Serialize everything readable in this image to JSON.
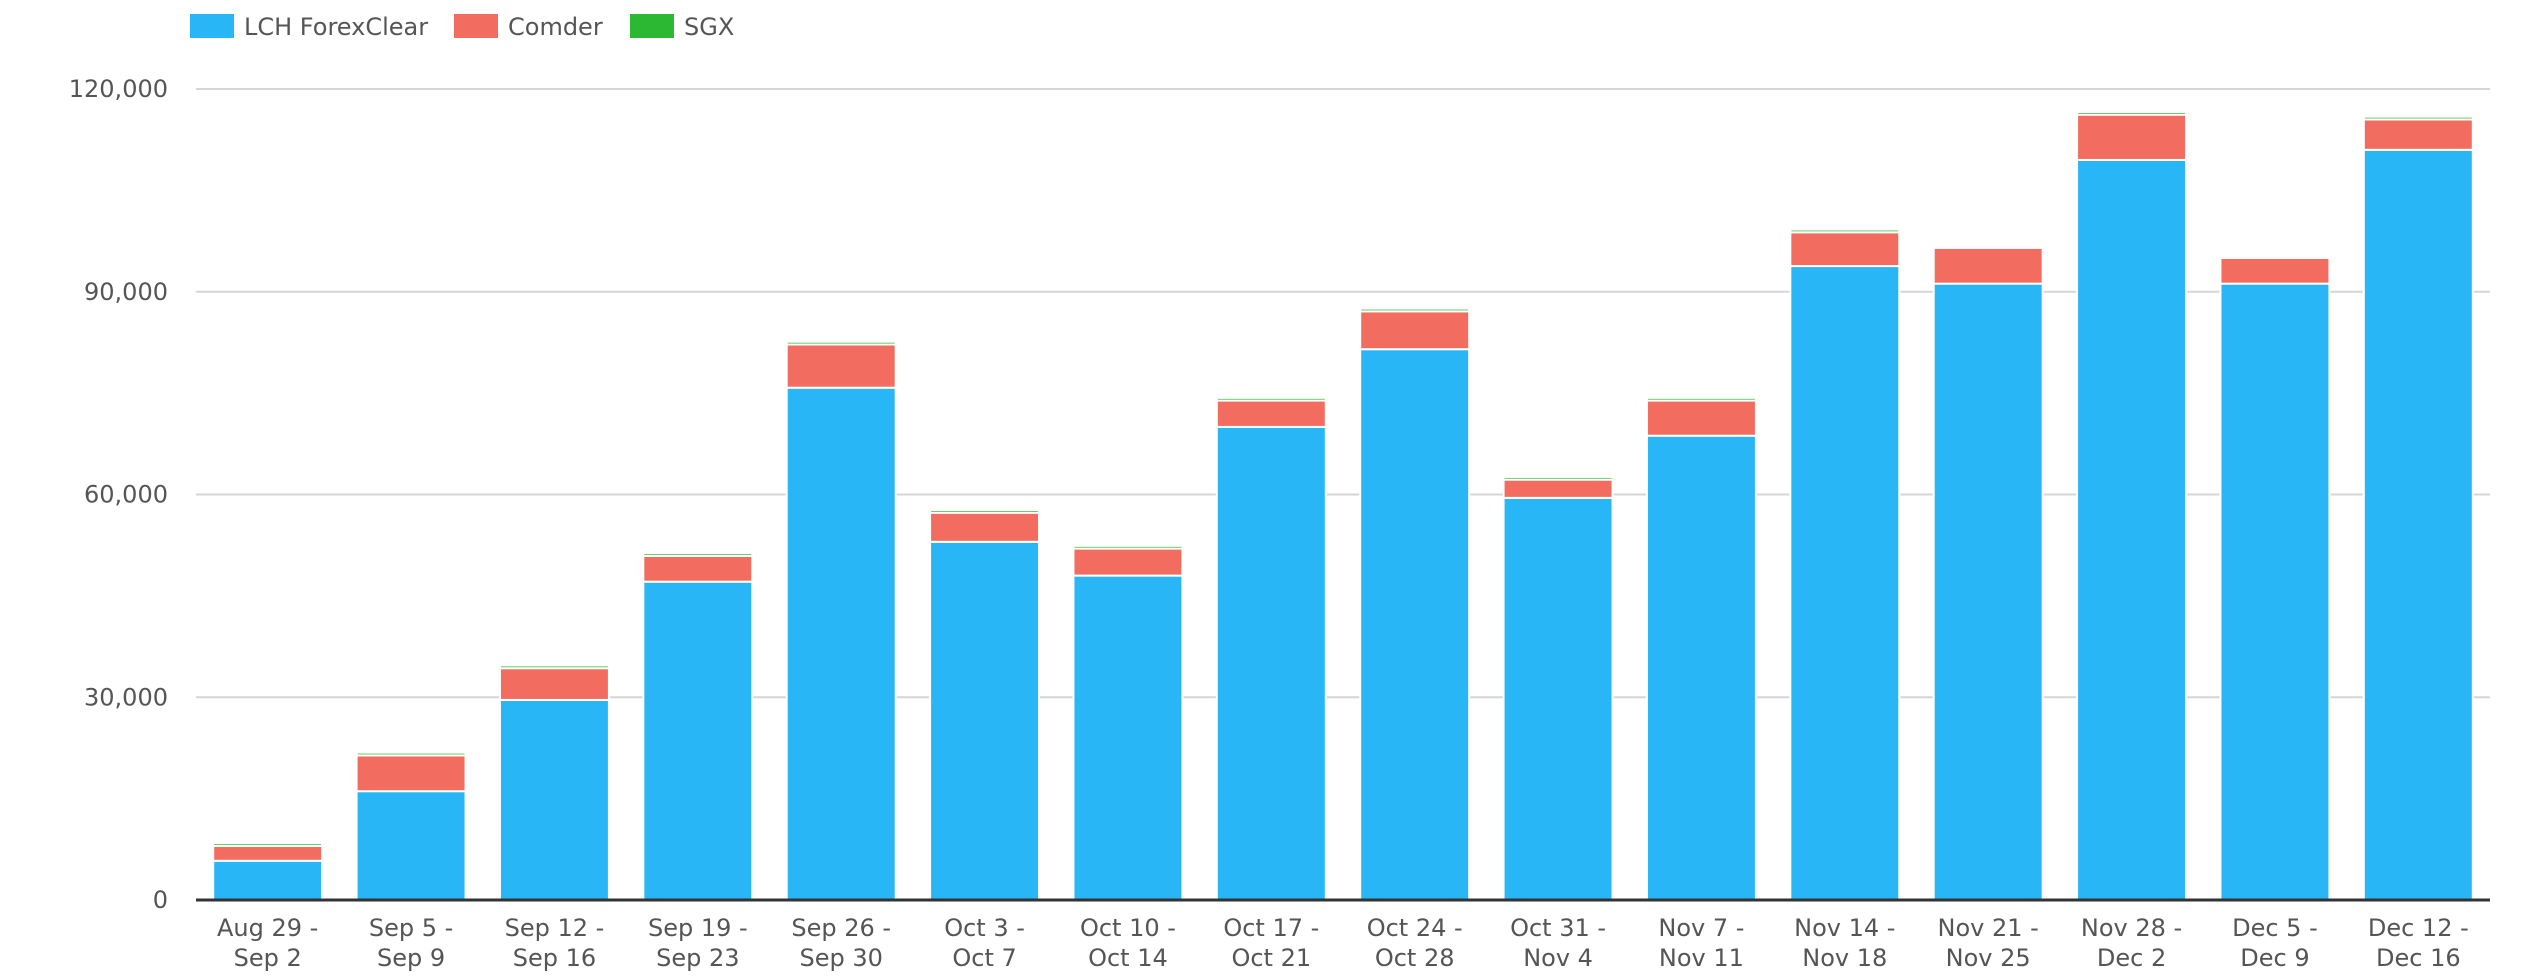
{
  "chart_data": {
    "type": "bar",
    "stacked": true,
    "title": "",
    "xlabel": "",
    "ylabel": "",
    "ylim": [
      0,
      120000
    ],
    "yticks": [
      "0",
      "30,000",
      "60,000",
      "90,000",
      "120,000"
    ],
    "ytick_values": [
      0,
      30000,
      60000,
      90000,
      120000
    ],
    "grid": true,
    "legend": "top-left",
    "categories": [
      [
        "Aug 29 -",
        "Sep 2"
      ],
      [
        "Sep 5 -",
        "Sep 9"
      ],
      [
        "Sep 12 -",
        "Sep 16"
      ],
      [
        "Sep 19 -",
        "Sep 23"
      ],
      [
        "Sep 26 -",
        "Sep 30"
      ],
      [
        "Oct 3 -",
        "Oct 7"
      ],
      [
        "Oct 10 -",
        "Oct 14"
      ],
      [
        "Oct 17 -",
        "Oct 21"
      ],
      [
        "Oct 24 -",
        "Oct 28"
      ],
      [
        "Oct 31 -",
        "Nov 4"
      ],
      [
        "Nov 7 -",
        "Nov 11"
      ],
      [
        "Nov 14 -",
        "Nov 18"
      ],
      [
        "Nov 21 -",
        "Nov 25"
      ],
      [
        "Nov 28 -",
        "Dec 2"
      ],
      [
        "Dec 5 -",
        "Dec 9"
      ],
      [
        "Dec 12 -",
        "Dec 16"
      ]
    ],
    "series": [
      {
        "name": "LCH ForexClear",
        "color": "#29b6f6",
        "values": [
          5800,
          16100,
          29600,
          47100,
          75800,
          53000,
          48000,
          70000,
          81500,
          59500,
          68700,
          93800,
          91200,
          109500,
          91200,
          111000
        ]
      },
      {
        "name": "Comder",
        "color": "#f36c60",
        "values": [
          2200,
          5300,
          4700,
          3800,
          6400,
          4300,
          4000,
          3900,
          5600,
          2700,
          5200,
          5000,
          5300,
          6700,
          3800,
          4500
        ]
      },
      {
        "name": "SGX",
        "color": "#2db833",
        "values": [
          400,
          400,
          400,
          400,
          400,
          400,
          400,
          400,
          400,
          400,
          400,
          400,
          300,
          400,
          300,
          400
        ]
      }
    ]
  }
}
